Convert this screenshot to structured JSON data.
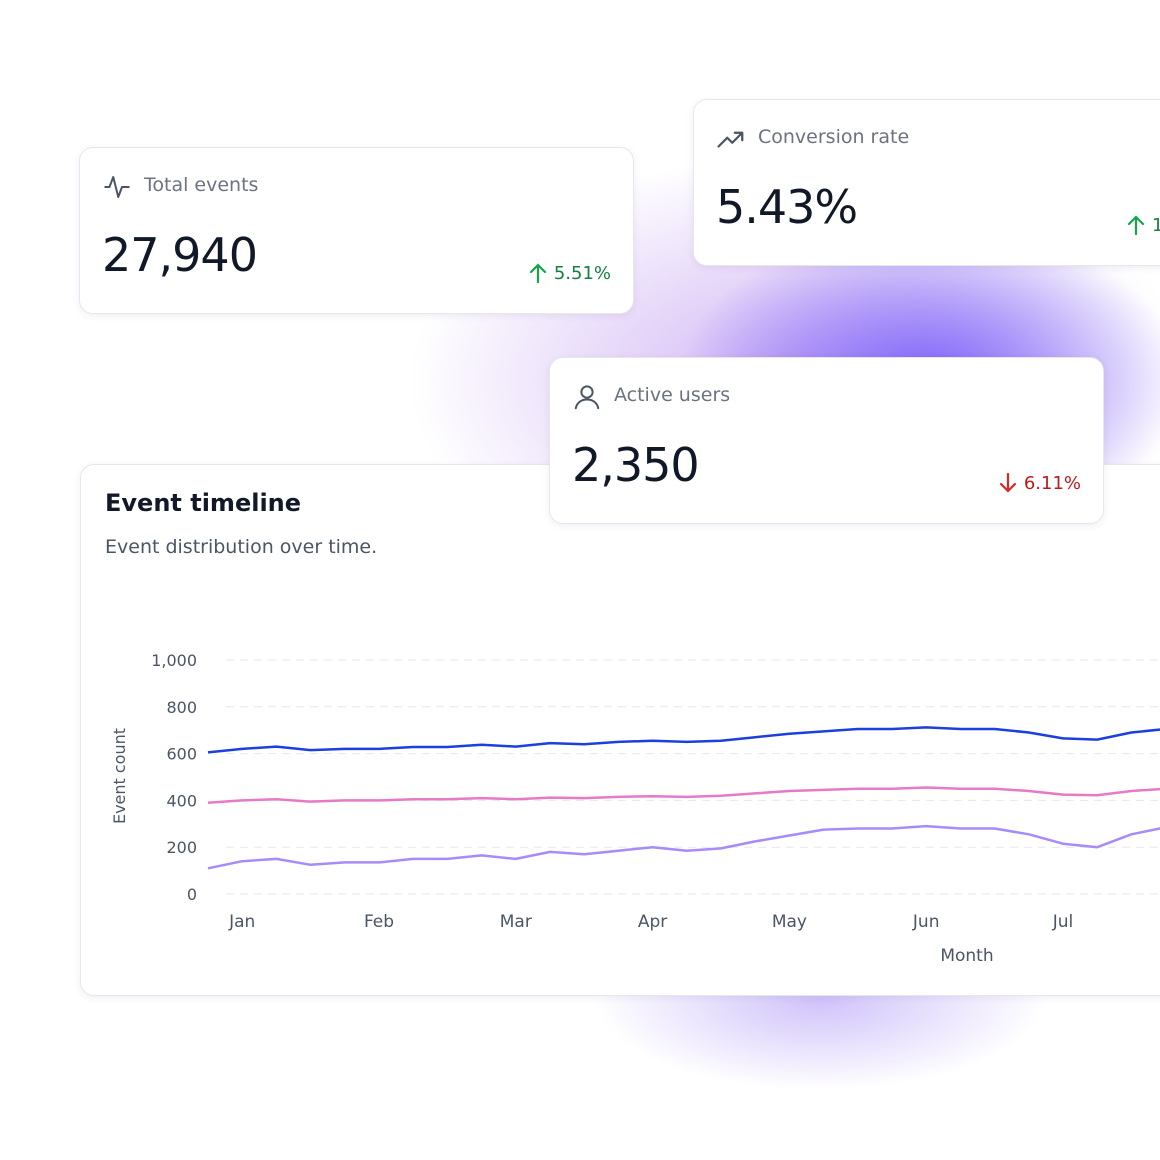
{
  "kpis": [
    {
      "label": "Total events",
      "value": "27,940",
      "delta": "5.51%",
      "trend": "up"
    },
    {
      "label": "Conversion rate",
      "value": "5.43%",
      "delta": "1",
      "trend": "up"
    },
    {
      "label": "Active users",
      "value": "2,350",
      "delta": "6.11%",
      "trend": "down"
    }
  ],
  "chart_data": {
    "type": "line",
    "title": "Event timeline",
    "subtitle": "Event distribution over time.",
    "x_label": "Month",
    "y_label": "Event count",
    "categories": [
      null,
      "Jan",
      null,
      null,
      null,
      "Feb",
      null,
      null,
      null,
      "Mar",
      null,
      null,
      null,
      "Apr",
      null,
      null,
      null,
      "May",
      null,
      null,
      null,
      "Jun",
      null,
      null,
      null,
      "Jul",
      null,
      null,
      null
    ],
    "series": [
      {
        "color": "#1d3fe0",
        "values": [
          605,
          620,
          630,
          615,
          620,
          620,
          628,
          628,
          638,
          630,
          645,
          640,
          650,
          655,
          650,
          655,
          670,
          685,
          695,
          705,
          705,
          712,
          705,
          705,
          690,
          665,
          660,
          690,
          705
        ]
      },
      {
        "color": "#e879c9",
        "values": [
          390,
          400,
          405,
          395,
          400,
          400,
          405,
          405,
          410,
          405,
          412,
          410,
          415,
          418,
          415,
          420,
          430,
          440,
          445,
          450,
          450,
          455,
          450,
          450,
          440,
          425,
          422,
          440,
          450
        ]
      },
      {
        "color": "#a78bfa",
        "values": [
          110,
          140,
          150,
          125,
          135,
          135,
          150,
          150,
          165,
          150,
          180,
          170,
          185,
          200,
          185,
          195,
          225,
          250,
          275,
          280,
          280,
          290,
          280,
          280,
          255,
          215,
          200,
          255,
          285
        ]
      }
    ],
    "ylim": [
      0,
      1000
    ],
    "yticks": [
      0,
      200,
      400,
      600,
      800,
      {
        "value": 1000,
        "label": "1,000"
      }
    ],
    "grid": true
  }
}
